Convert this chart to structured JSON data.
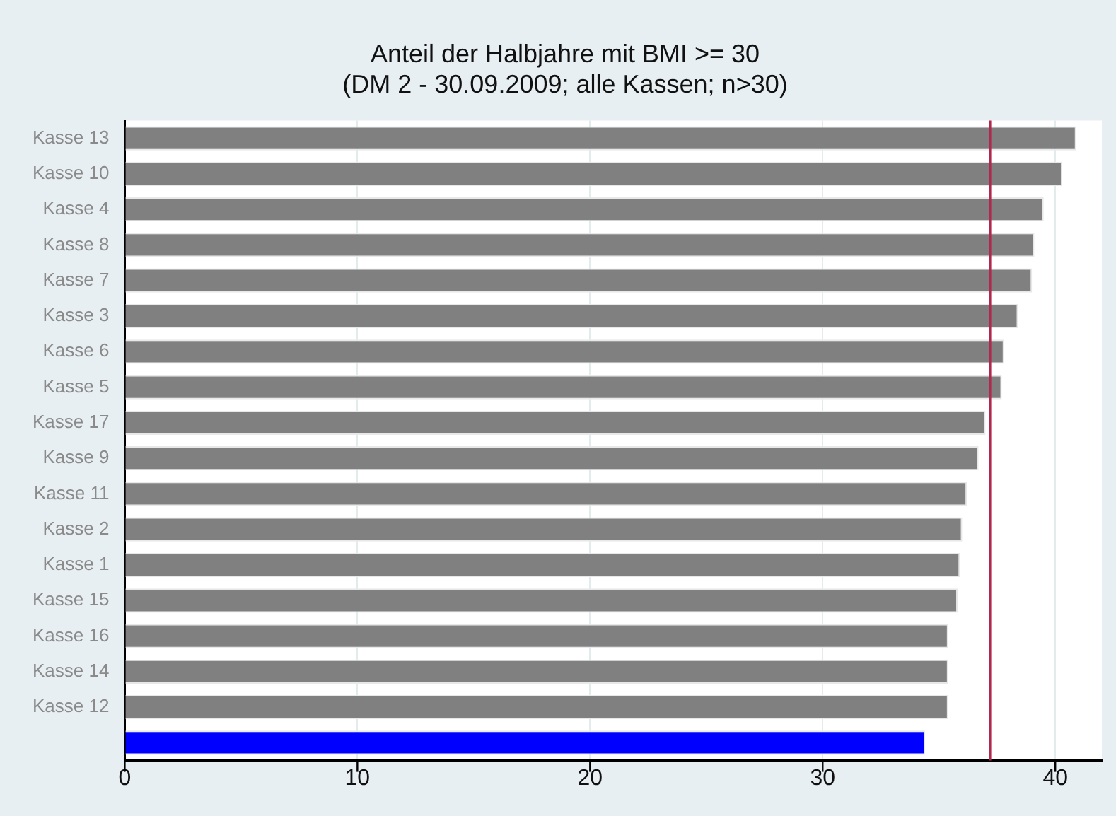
{
  "chart_data": {
    "type": "bar",
    "orientation": "horizontal",
    "title": "Anteil der Halbjahre mit BMI >= 30",
    "subtitle": "(DM 2 - 30.09.2009; alle Kassen; n>30)",
    "categories": [
      "Kasse 13",
      "Kasse 10",
      "Kasse 4",
      "Kasse 8",
      "Kasse 7",
      "Kasse 3",
      "Kasse 6",
      "Kasse 5",
      "Kasse 17",
      "Kasse 9",
      "Kasse 11",
      "Kasse 2",
      "Kasse 1",
      "Kasse 15",
      "Kasse 16",
      "Kasse 14",
      "Kasse 12",
      null
    ],
    "values": [
      40.9,
      40.3,
      39.5,
      39.1,
      39.0,
      38.4,
      37.8,
      37.7,
      37.0,
      36.7,
      36.2,
      36.0,
      35.9,
      35.8,
      35.4,
      35.4,
      35.4,
      34.4
    ],
    "colors": [
      "#808080",
      "#808080",
      "#808080",
      "#808080",
      "#808080",
      "#808080",
      "#808080",
      "#808080",
      "#808080",
      "#808080",
      "#808080",
      "#808080",
      "#808080",
      "#808080",
      "#808080",
      "#808080",
      "#808080",
      "#0000ff"
    ],
    "xlim": [
      0,
      42
    ],
    "xticks": [
      0,
      10,
      20,
      30,
      40
    ],
    "grid": "x",
    "ref_lines": [
      {
        "axis": "x",
        "value": 37.2,
        "color": "#b0284e"
      }
    ]
  }
}
